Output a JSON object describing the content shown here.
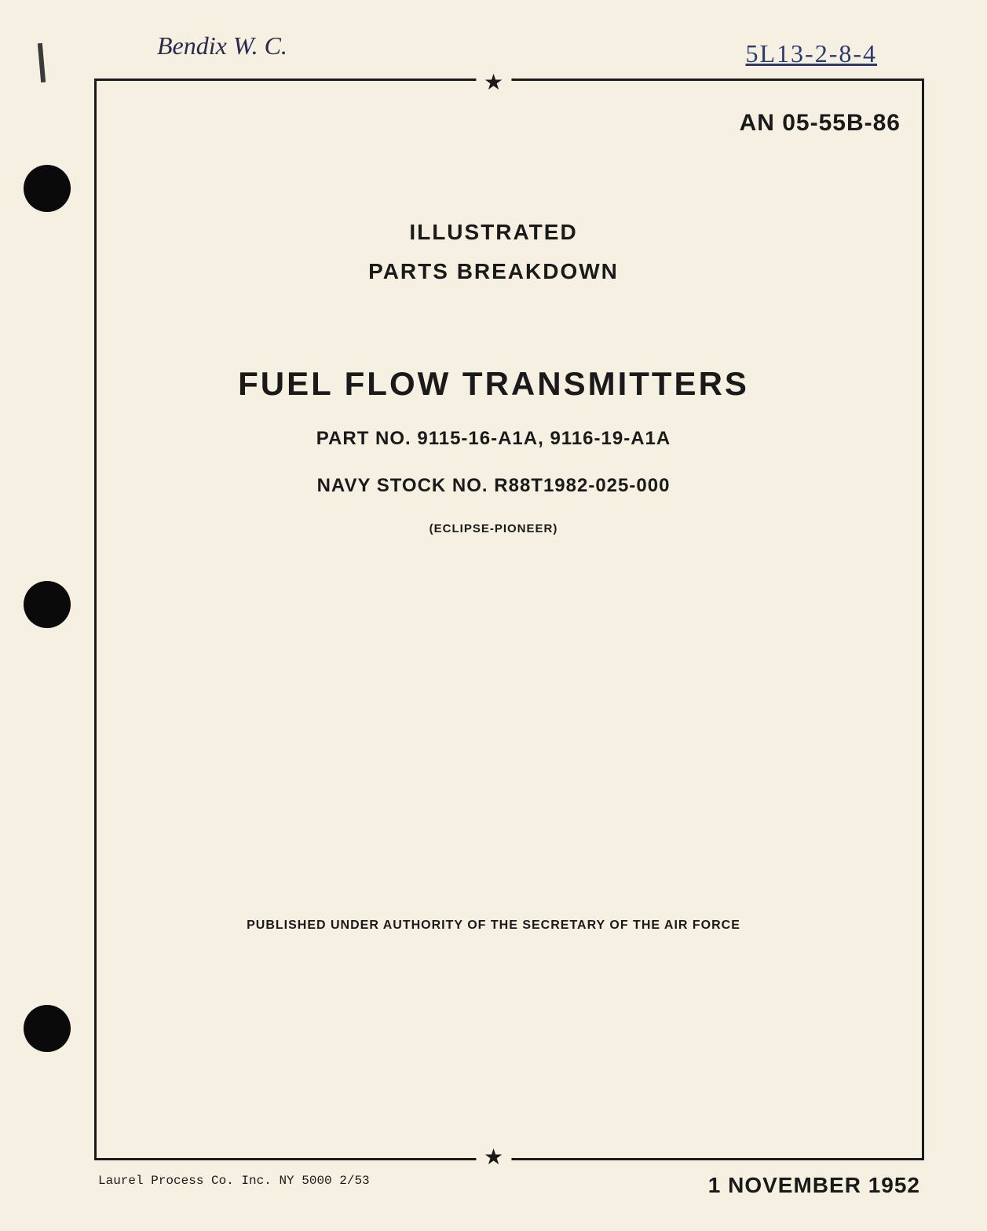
{
  "handwritten": {
    "author_note": "Bendix W. C.",
    "reference_number": "5L13-2-8-4"
  },
  "header": {
    "document_number": "AN 05-55B-86"
  },
  "title_block": {
    "line1": "ILLUSTRATED",
    "line2": "PARTS BREAKDOWN",
    "main_title": "FUEL FLOW TRANSMITTERS",
    "part_no": "PART NO. 9115-16-A1A, 9116-19-A1A",
    "navy_stock": "NAVY STOCK NO. R88T1982-025-000",
    "manufacturer": "(ECLIPSE-PIONEER)"
  },
  "authority": {
    "text": "PUBLISHED UNDER AUTHORITY OF THE SECRETARY OF THE AIR FORCE"
  },
  "footer": {
    "printer": "Laurel Process Co. Inc. NY 5000 2/53",
    "date": "1 NOVEMBER 1952"
  },
  "styling": {
    "page_bg": "#f5f0e1",
    "text_color": "#1a1a1a",
    "handwritten_color": "#2a3a6a",
    "border_width": 3,
    "main_title_fontsize": 42,
    "subtitle_fontsize": 28,
    "part_no_fontsize": 24,
    "doc_number_fontsize": 30,
    "authority_fontsize": 16,
    "date_fontsize": 28
  }
}
